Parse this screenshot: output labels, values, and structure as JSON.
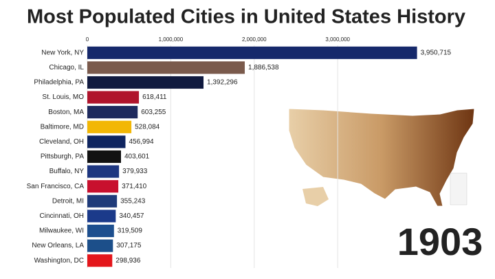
{
  "chart_data": {
    "type": "bar",
    "orientation": "horizontal",
    "title": "Most Populated Cities in United States History",
    "annotation": "1903",
    "categories": [
      "New York, NY",
      "Chicago, IL",
      "Philadelphia, PA",
      "St. Louis, MO",
      "Boston, MA",
      "Baltimore, MD",
      "Cleveland, OH",
      "Pittsburgh, PA",
      "Buffalo, NY",
      "San Francisco, CA",
      "Detroit, MI",
      "Cincinnati, OH",
      "Milwaukee, WI",
      "New Orleans, LA",
      "Washington, DC"
    ],
    "values": [
      3950715,
      1886538,
      1392296,
      618411,
      603255,
      528084,
      456994,
      403601,
      379933,
      371410,
      355243,
      340457,
      319509,
      307175,
      298936
    ],
    "value_labels": [
      "3,950,715",
      "1,886,538",
      "1,392,296",
      "618,411",
      "603,255",
      "528,084",
      "456,994",
      "403,601",
      "379,933",
      "371,410",
      "355,243",
      "340,457",
      "319,509",
      "307,175",
      "298,936"
    ],
    "colors": [
      "#16296b",
      "#7a5a4c",
      "#101a3f",
      "#b0142c",
      "#1e2a5e",
      "#f2b705",
      "#0f2560",
      "#111111",
      "#1d3680",
      "#c8102e",
      "#1f3b7a",
      "#1b3a8a",
      "#1d4f8f",
      "#1c4f8a",
      "#e4161b"
    ],
    "xlim": [
      0,
      4300000
    ],
    "xticks": [
      0,
      {
        "value": 1000000,
        "label": "1,000,000"
      },
      {
        "value": 2000000,
        "label": "2,000,000"
      },
      {
        "value": 3000000,
        "label": "3,000,000"
      }
    ],
    "grid": true
  }
}
